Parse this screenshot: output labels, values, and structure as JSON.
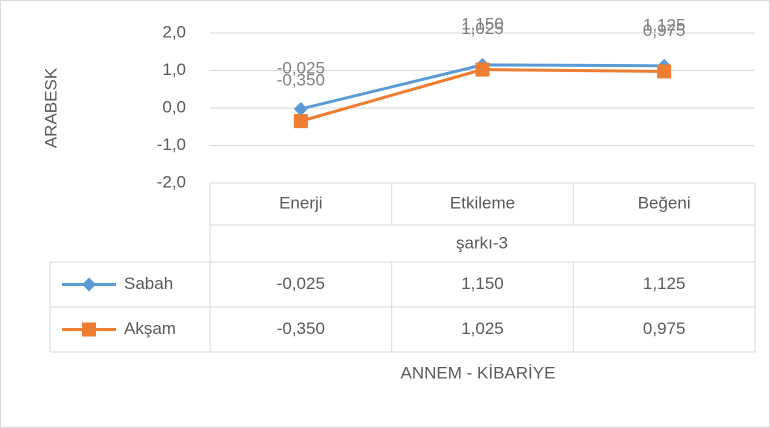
{
  "chart_data": {
    "type": "line",
    "y_axis_label": "ARABESK",
    "x_group_label": "şarkı-3",
    "x_axis_label": "ANNEM - KİBARİYE",
    "categories": [
      "Enerji",
      "Etkileme",
      "Beğeni"
    ],
    "series": [
      {
        "name": "Sabah",
        "color": "#5b9bd5",
        "marker": "diamond",
        "values": [
          -0.025,
          1.15,
          1.125
        ],
        "value_labels": [
          "-0,025",
          "1,150",
          "1,125"
        ]
      },
      {
        "name": "Akşam",
        "color": "#ed7d31",
        "marker": "square",
        "values": [
          -0.35,
          1.025,
          0.975
        ],
        "value_labels": [
          "-0,350",
          "1,025",
          "0,975"
        ]
      }
    ],
    "ylim": [
      -2,
      2
    ],
    "yticks": [
      {
        "value": -2,
        "label": "-2,0"
      },
      {
        "value": -1,
        "label": "-1,0"
      },
      {
        "value": 0,
        "label": "0,0"
      },
      {
        "value": 1,
        "label": "1,0"
      },
      {
        "value": 2,
        "label": "2,0"
      }
    ],
    "grid": true,
    "data_table": true
  }
}
